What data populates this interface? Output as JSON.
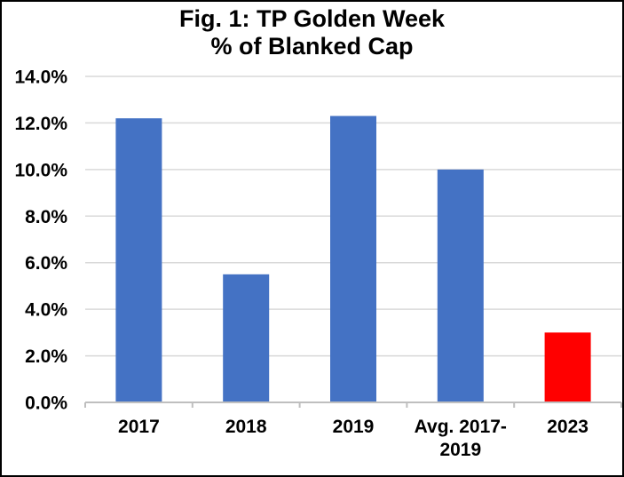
{
  "chart_data": {
    "type": "bar",
    "title": "Fig. 1: TP Golden Week",
    "subtitle": "% of Blanked Cap",
    "categories": [
      "2017",
      "2018",
      "2019",
      "Avg. 2017-2019",
      "2023"
    ],
    "category_label_lines": [
      [
        "2017"
      ],
      [
        "2018"
      ],
      [
        "2019"
      ],
      [
        "Avg. 2017-",
        "2019"
      ],
      [
        "2023"
      ]
    ],
    "values": [
      12.2,
      5.5,
      12.3,
      10.0,
      3.0
    ],
    "value_unit": "%",
    "bar_colors": [
      "#4472C4",
      "#4472C4",
      "#4472C4",
      "#4472C4",
      "#FF0000"
    ],
    "ylim": [
      0,
      14
    ],
    "yticks": [
      0,
      2,
      4,
      6,
      8,
      10,
      12,
      14
    ],
    "ytick_labels": [
      "0.0%",
      "2.0%",
      "4.0%",
      "6.0%",
      "8.0%",
      "10.0%",
      "12.0%",
      "14.0%"
    ],
    "xlabel": "",
    "ylabel": "",
    "grid": true,
    "grid_color": "#D9D9D9",
    "legend": "none"
  }
}
